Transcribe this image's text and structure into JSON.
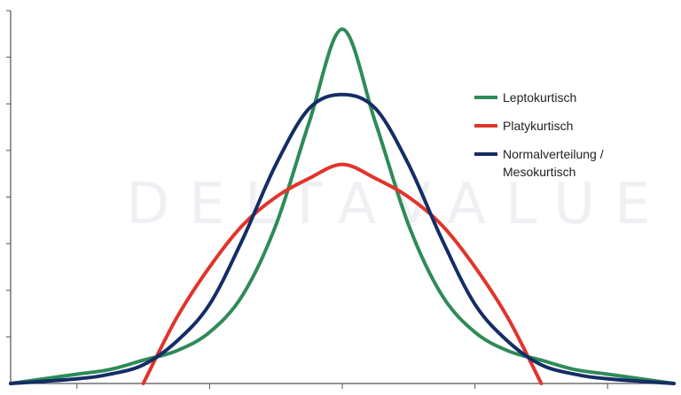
{
  "watermark_text": "DELTAVALUE",
  "chart_data": {
    "type": "line",
    "title": "",
    "xlabel": "",
    "ylabel": "",
    "grid": false,
    "legend_placement": "right",
    "xlim": [
      -5,
      5
    ],
    "ylim": [
      0,
      0.8
    ],
    "x_ticks": [
      -4,
      -2,
      0,
      2,
      4
    ],
    "y_ticks": [
      0.1,
      0.2,
      0.3,
      0.4,
      0.5,
      0.6,
      0.7,
      0.8
    ],
    "series": [
      {
        "name": "Leptokurtisch",
        "color": "#2e8b57",
        "x": [
          -5,
          -4,
          -3.5,
          -3,
          -2.5,
          -2,
          -1.5,
          -1,
          -0.5,
          0,
          0.5,
          1,
          1.5,
          2,
          2.5,
          3,
          3.5,
          4,
          5
        ],
        "y": [
          0.0,
          0.02,
          0.03,
          0.05,
          0.07,
          0.11,
          0.19,
          0.34,
          0.56,
          0.76,
          0.56,
          0.34,
          0.19,
          0.11,
          0.07,
          0.05,
          0.03,
          0.02,
          0.0
        ]
      },
      {
        "name": "Platykurtisch",
        "color": "#e0352b",
        "x": [
          -3,
          -2.5,
          -2,
          -1.5,
          -1,
          -0.5,
          0,
          0.5,
          1,
          1.5,
          2,
          2.5,
          3
        ],
        "y": [
          0.0,
          0.14,
          0.25,
          0.34,
          0.4,
          0.44,
          0.47,
          0.44,
          0.4,
          0.34,
          0.25,
          0.14,
          0.0
        ]
      },
      {
        "name": "Normalverteilung / Mesokurtisch",
        "color": "#142d66",
        "x": [
          -5,
          -4,
          -3.5,
          -3,
          -2.5,
          -2,
          -1.5,
          -1,
          -0.5,
          0,
          0.5,
          1,
          1.5,
          2,
          2.5,
          3,
          3.5,
          4,
          5
        ],
        "y": [
          0.0,
          0.01,
          0.02,
          0.04,
          0.09,
          0.17,
          0.31,
          0.47,
          0.59,
          0.62,
          0.59,
          0.47,
          0.31,
          0.17,
          0.09,
          0.04,
          0.02,
          0.01,
          0.0
        ]
      }
    ],
    "legend": [
      {
        "label_lines": [
          "Leptokurtisch"
        ],
        "color": "#2e8b57"
      },
      {
        "label_lines": [
          "Platykurtisch"
        ],
        "color": "#e0352b"
      },
      {
        "label_lines": [
          "Normalverteilung /",
          "Mesokurtisch"
        ],
        "color": "#142d66"
      }
    ]
  }
}
